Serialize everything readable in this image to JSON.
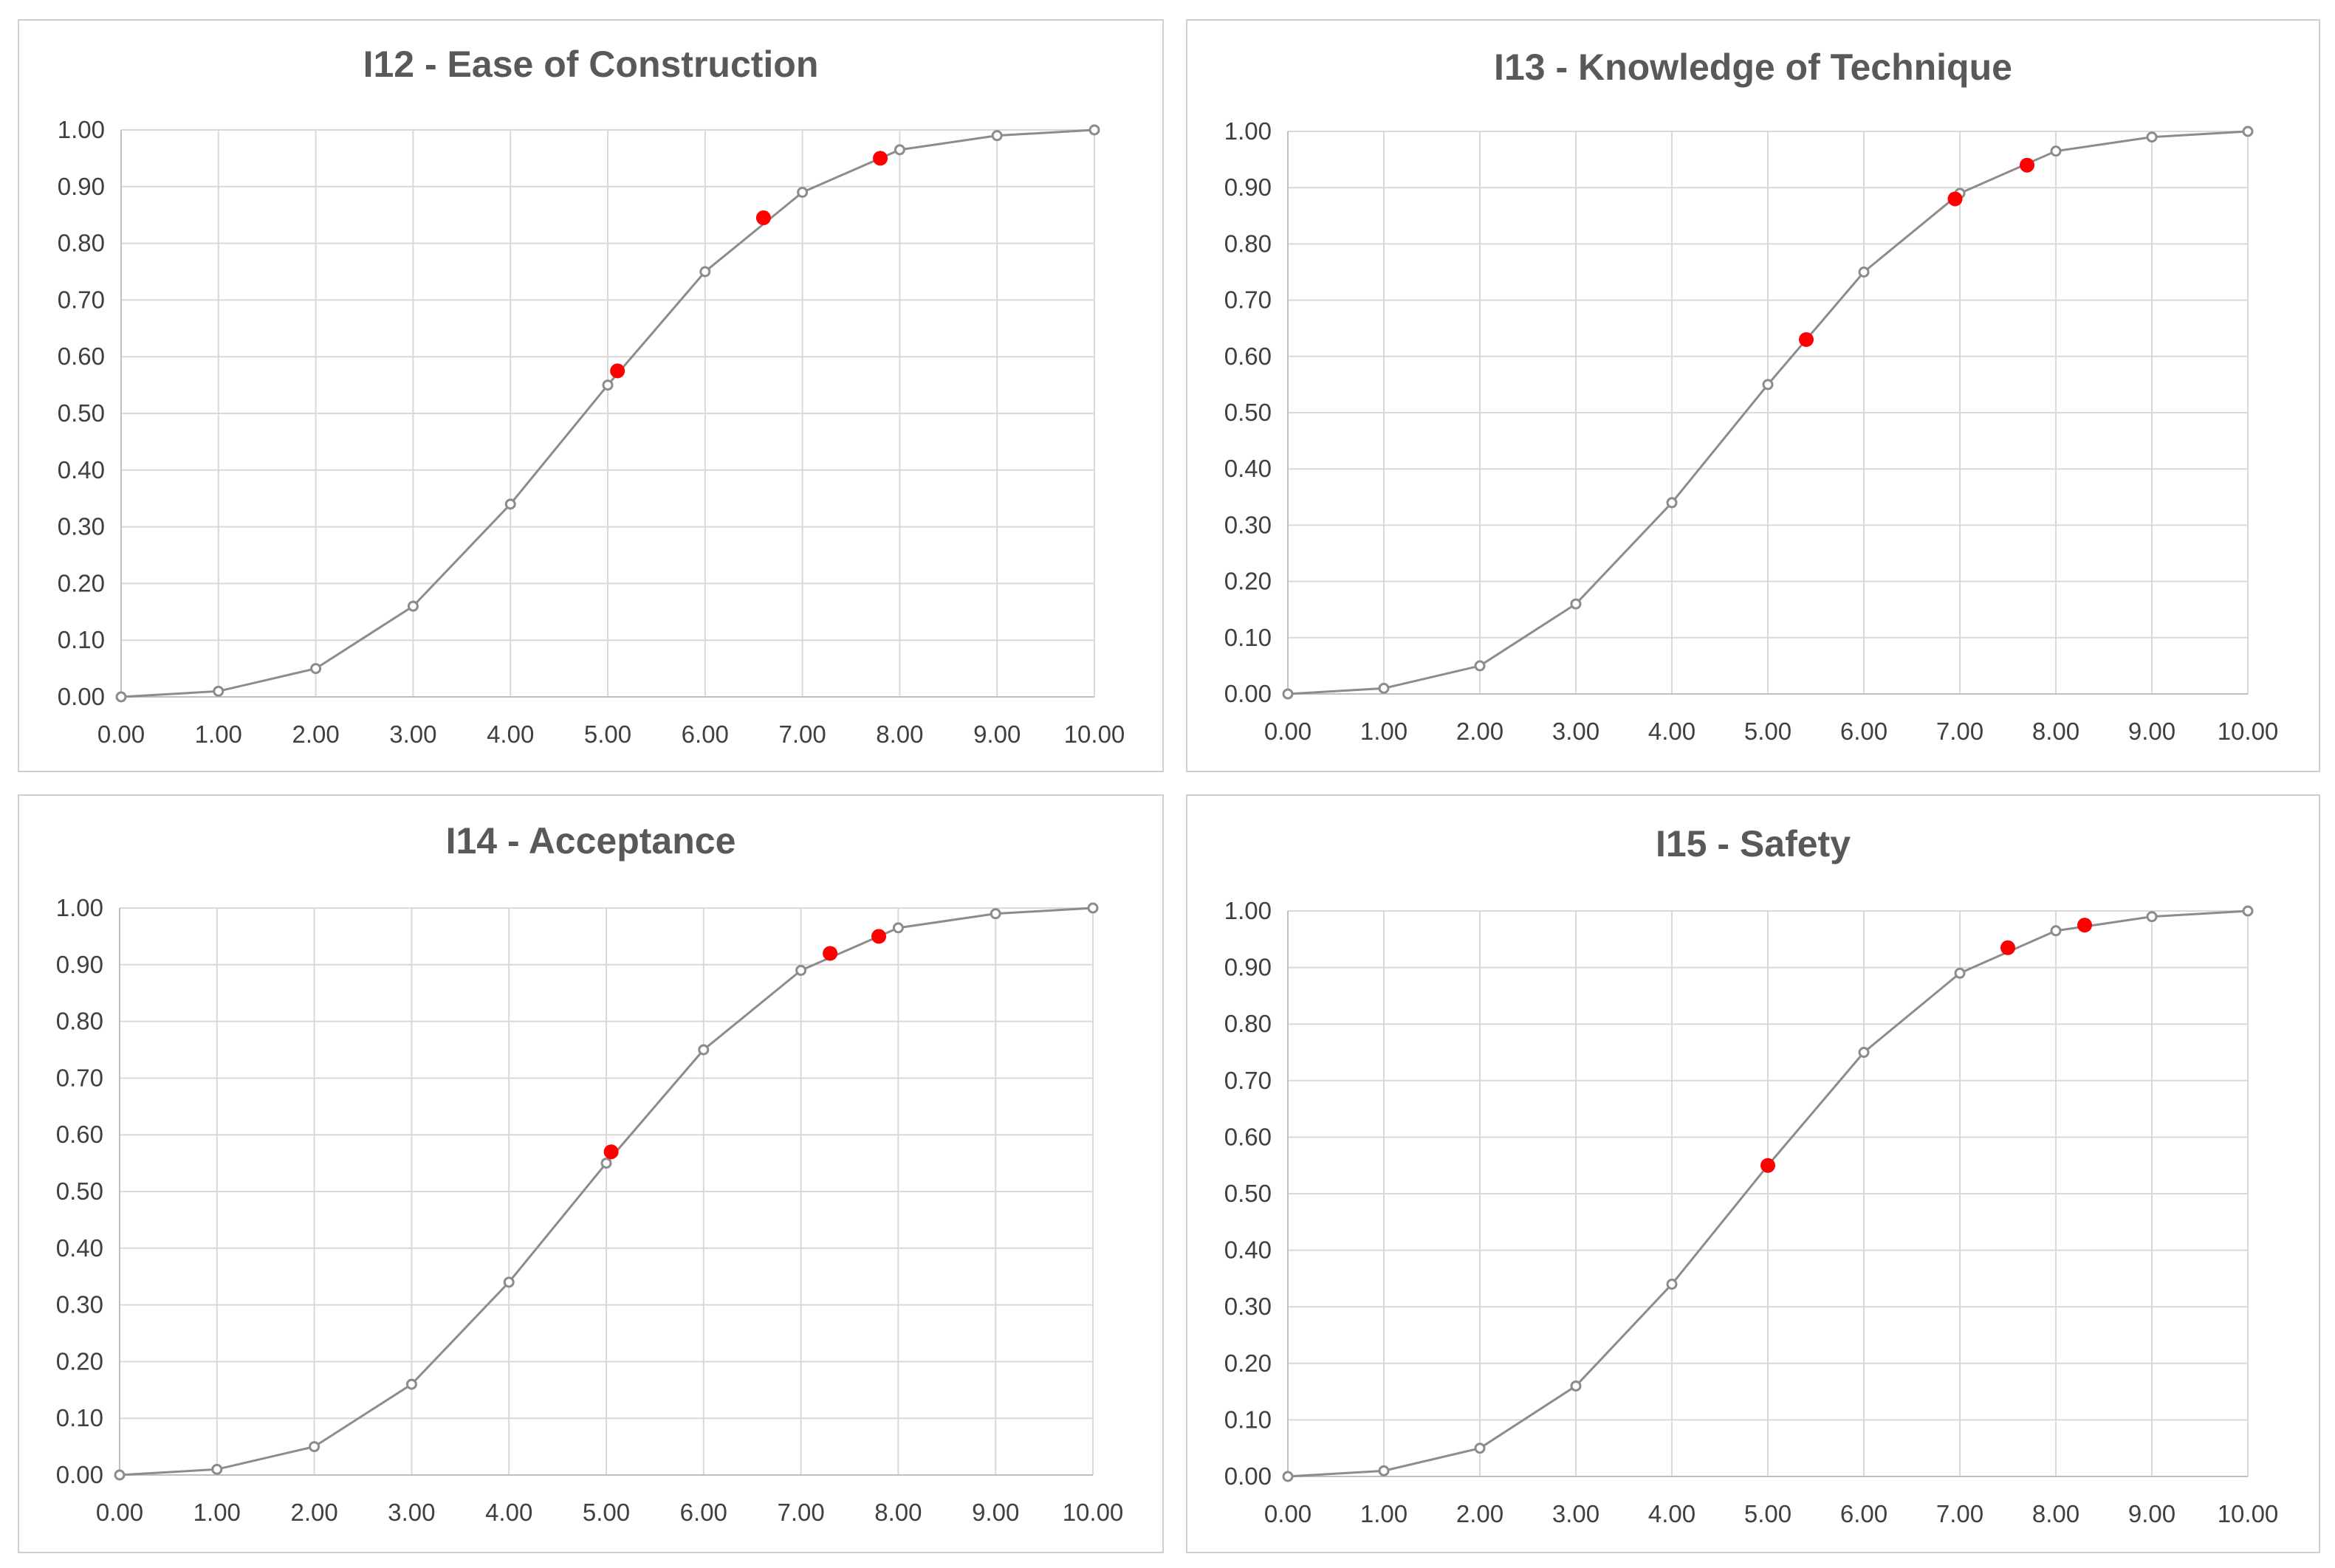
{
  "chart_data": [
    {
      "type": "line",
      "title": "I12 - Ease of Construction",
      "xlim": [
        0,
        10
      ],
      "ylim": [
        0,
        1
      ],
      "x_ticks": [
        "0.00",
        "1.00",
        "2.00",
        "3.00",
        "4.00",
        "5.00",
        "6.00",
        "7.00",
        "8.00",
        "9.00",
        "10.00"
      ],
      "y_ticks": [
        "0.00",
        "0.10",
        "0.20",
        "0.30",
        "0.40",
        "0.50",
        "0.60",
        "0.70",
        "0.80",
        "0.90",
        "1.00"
      ],
      "grid": true,
      "legend": "none",
      "series": [
        {
          "x": [
            0,
            1,
            2,
            3,
            4,
            5,
            6,
            7,
            8,
            9,
            10
          ],
          "y": [
            0.0,
            0.01,
            0.05,
            0.16,
            0.34,
            0.55,
            0.75,
            0.89,
            0.965,
            0.99,
            1.0
          ],
          "color": "#8c8c8c",
          "marker": "open-circle"
        },
        {
          "x": [
            5.1,
            6.6,
            7.8
          ],
          "y": [
            0.575,
            0.845,
            0.95
          ],
          "color": "#ff0000",
          "marker": "filled-circle"
        }
      ]
    },
    {
      "type": "line",
      "title": "I13 - Knowledge of Technique",
      "xlim": [
        0,
        10
      ],
      "ylim": [
        0,
        1
      ],
      "x_ticks": [
        "0.00",
        "1.00",
        "2.00",
        "3.00",
        "4.00",
        "5.00",
        "6.00",
        "7.00",
        "8.00",
        "9.00",
        "10.00"
      ],
      "y_ticks": [
        "0.00",
        "0.10",
        "0.20",
        "0.30",
        "0.40",
        "0.50",
        "0.60",
        "0.70",
        "0.80",
        "0.90",
        "1.00"
      ],
      "grid": true,
      "legend": "none",
      "series": [
        {
          "x": [
            0,
            1,
            2,
            3,
            4,
            5,
            6,
            7,
            8,
            9,
            10
          ],
          "y": [
            0.0,
            0.01,
            0.05,
            0.16,
            0.34,
            0.55,
            0.75,
            0.89,
            0.965,
            0.99,
            1.0
          ],
          "color": "#8c8c8c",
          "marker": "open-circle"
        },
        {
          "x": [
            5.4,
            6.95,
            7.7
          ],
          "y": [
            0.63,
            0.88,
            0.94
          ],
          "color": "#ff0000",
          "marker": "filled-circle"
        }
      ]
    },
    {
      "type": "line",
      "title": "I14 - Acceptance",
      "xlim": [
        0,
        10
      ],
      "ylim": [
        0,
        1
      ],
      "x_ticks": [
        "0.00",
        "1.00",
        "2.00",
        "3.00",
        "4.00",
        "5.00",
        "6.00",
        "7.00",
        "8.00",
        "9.00",
        "10.00"
      ],
      "y_ticks": [
        "0.00",
        "0.10",
        "0.20",
        "0.30",
        "0.40",
        "0.50",
        "0.60",
        "0.70",
        "0.80",
        "0.90",
        "1.00"
      ],
      "grid": true,
      "legend": "none",
      "series": [
        {
          "x": [
            0,
            1,
            2,
            3,
            4,
            5,
            6,
            7,
            8,
            9,
            10
          ],
          "y": [
            0.0,
            0.01,
            0.05,
            0.16,
            0.34,
            0.55,
            0.75,
            0.89,
            0.965,
            0.99,
            1.0
          ],
          "color": "#8c8c8c",
          "marker": "open-circle"
        },
        {
          "x": [
            5.05,
            7.3,
            7.8
          ],
          "y": [
            0.57,
            0.92,
            0.95
          ],
          "color": "#ff0000",
          "marker": "filled-circle"
        }
      ]
    },
    {
      "type": "line",
      "title": "I15 - Safety",
      "xlim": [
        0,
        10
      ],
      "ylim": [
        0,
        1
      ],
      "x_ticks": [
        "0.00",
        "1.00",
        "2.00",
        "3.00",
        "4.00",
        "5.00",
        "6.00",
        "7.00",
        "8.00",
        "9.00",
        "10.00"
      ],
      "y_ticks": [
        "0.00",
        "0.10",
        "0.20",
        "0.30",
        "0.40",
        "0.50",
        "0.60",
        "0.70",
        "0.80",
        "0.90",
        "1.00"
      ],
      "grid": true,
      "legend": "none",
      "series": [
        {
          "x": [
            0,
            1,
            2,
            3,
            4,
            5,
            6,
            7,
            8,
            9,
            10
          ],
          "y": [
            0.0,
            0.01,
            0.05,
            0.16,
            0.34,
            0.55,
            0.75,
            0.89,
            0.965,
            0.99,
            1.0
          ],
          "color": "#8c8c8c",
          "marker": "open-circle"
        },
        {
          "x": [
            5.0,
            7.5,
            8.3
          ],
          "y": [
            0.55,
            0.935,
            0.975
          ],
          "color": "#ff0000",
          "marker": "filled-circle"
        }
      ]
    }
  ]
}
